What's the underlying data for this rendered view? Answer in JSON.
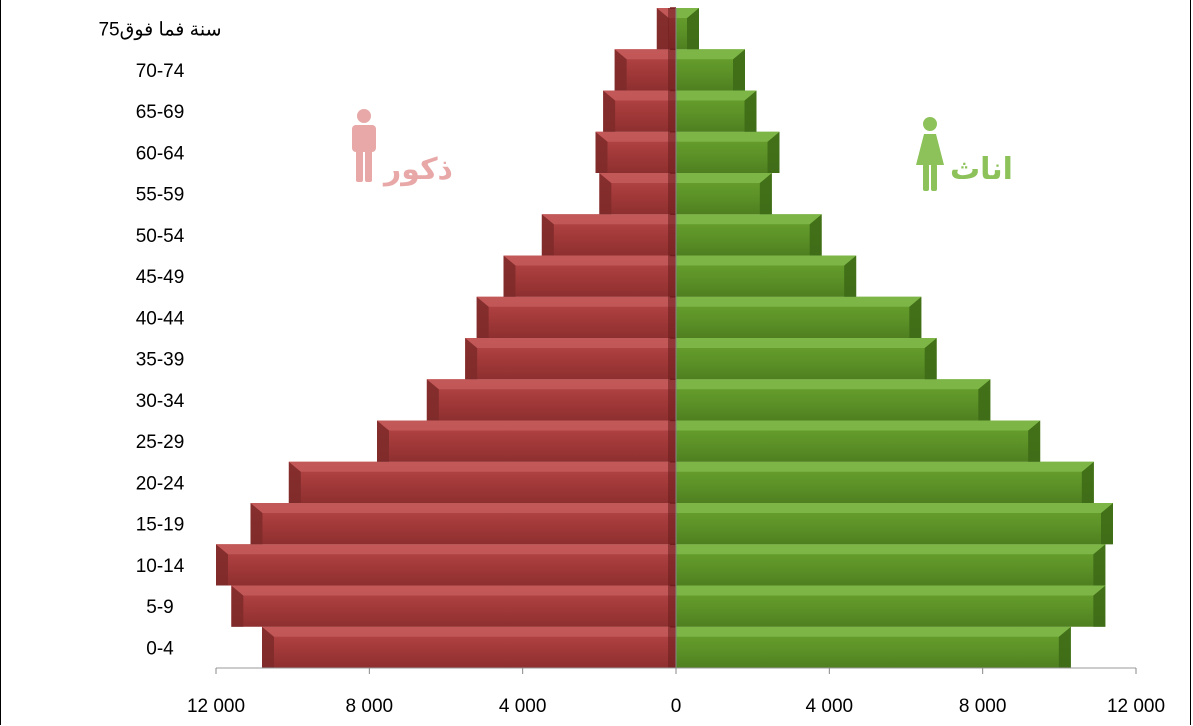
{
  "chart_data": {
    "type": "bar",
    "subtype": "population-pyramid",
    "title": "",
    "xlabel": "",
    "ylabel": "",
    "xlim": [
      -12000,
      12000
    ],
    "x_ticks": [
      -12000,
      -8000,
      -4000,
      0,
      4000,
      8000,
      12000
    ],
    "x_tick_labels": [
      "12 000",
      "8 000",
      "4 000",
      "0",
      "4 000",
      "8 000",
      "12 000"
    ],
    "categories": [
      "0-4",
      "5-9",
      "10-14",
      "15-19",
      "20-24",
      "25-29",
      "30-34",
      "35-39",
      "40-44",
      "45-49",
      "50-54",
      "55-59",
      "60-64",
      "65-69",
      "70-74",
      "75سنة فما فوق"
    ],
    "series": [
      {
        "name": "ذكور",
        "side": "left",
        "color": "#a43a3a",
        "values": [
          10800,
          11600,
          12000,
          11100,
          10100,
          7800,
          6500,
          5500,
          5200,
          4500,
          3500,
          2000,
          2100,
          1900,
          1600,
          500
        ]
      },
      {
        "name": "اناث",
        "side": "right",
        "color": "#5e9428",
        "values": [
          10300,
          11200,
          11200,
          11400,
          10900,
          9500,
          8200,
          6800,
          6400,
          4700,
          3800,
          2500,
          2700,
          2100,
          1800,
          600
        ]
      }
    ],
    "grid": false,
    "legend": "inline-labels"
  }
}
